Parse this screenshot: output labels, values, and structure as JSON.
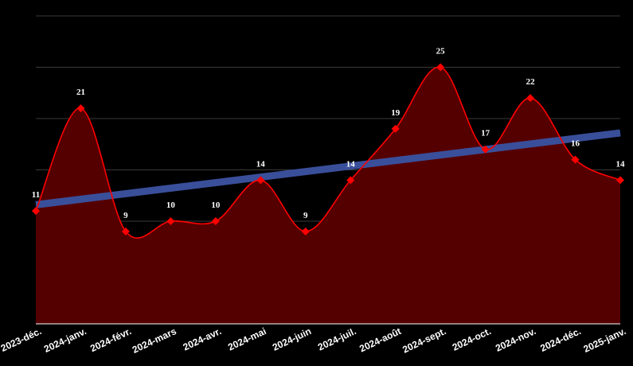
{
  "chart_data": {
    "type": "area",
    "categories": [
      "2023-déc.",
      "2024-janv.",
      "2024-févr.",
      "2024-mars",
      "2024-avr.",
      "2024-mai",
      "2024-juin",
      "2024-juil.",
      "2024-août",
      "2024-sept.",
      "2024-oct.",
      "2024-nov.",
      "2024-déc.",
      "2025-janv."
    ],
    "series": [
      {
        "values": [
          11,
          21,
          9,
          10,
          10,
          14,
          9,
          14,
          19,
          25,
          17,
          22,
          16,
          14
        ],
        "color": "#ff0000",
        "fill": "#550000",
        "marker": "diamond"
      }
    ],
    "trendline": {
      "type": "linear",
      "start": 11.6,
      "end": 18.6,
      "color": "#3a4f9a"
    },
    "ylim": [
      0,
      30
    ],
    "y_grid_step": 5,
    "grid": true,
    "title": "",
    "xlabel": "",
    "ylabel": "",
    "background": "#000000",
    "text_color": "#ffffff"
  }
}
